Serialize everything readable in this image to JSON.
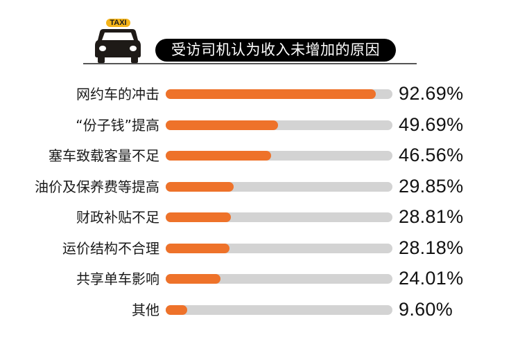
{
  "header": {
    "taxi_sign": "TAXI",
    "icon": "taxi-car-icon",
    "title": "受访司机认为收入未增加的原因",
    "colors": {
      "sign": "#F5B41A",
      "car": "#1E1A17",
      "pill": "#000000"
    }
  },
  "colors": {
    "bar_fill": "#EE722A",
    "bar_track": "#D3D3D3"
  },
  "rows": [
    {
      "label": "网约车的冲击",
      "value": "92.69%"
    },
    {
      "label": "“份子钱”提高",
      "value": "49.69%"
    },
    {
      "label": "塞车致载客量不足",
      "value": "46.56%"
    },
    {
      "label": "油价及保养费等提高",
      "value": "29.85%"
    },
    {
      "label": "财政补贴不足",
      "value": "28.81%"
    },
    {
      "label": "运价结构不合理",
      "value": "28.18%"
    },
    {
      "label": "共享单车影响",
      "value": "24.01%"
    },
    {
      "label": "其他",
      "value": "9.60%"
    }
  ],
  "chart_data": {
    "type": "bar",
    "orientation": "horizontal",
    "title": "受访司机认为收入未增加的原因",
    "categories": [
      "网约车的冲击",
      "“份子钱”提高",
      "塞车致载客量不足",
      "油价及保养费等提高",
      "财政补贴不足",
      "运价结构不合理",
      "共享单车影响",
      "其他"
    ],
    "values": [
      92.69,
      49.69,
      46.56,
      29.85,
      28.81,
      28.18,
      24.01,
      9.6
    ],
    "unit": "%",
    "xlim": [
      0,
      100
    ],
    "xlabel": "",
    "ylabel": "",
    "grid": false,
    "legend": null,
    "data_labels": true
  }
}
